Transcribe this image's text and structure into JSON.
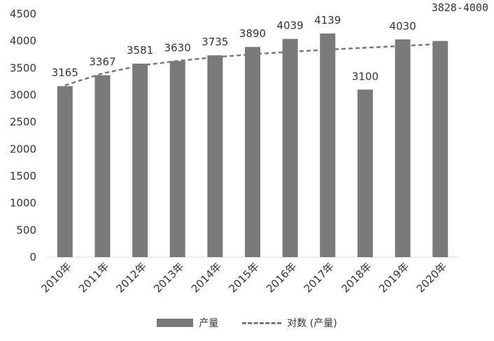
{
  "chart_data": {
    "type": "bar",
    "title": "",
    "xlabel": "",
    "ylabel": "",
    "categories": [
      "2010年",
      "2011年",
      "2012年",
      "2013年",
      "2014年",
      "2015年",
      "2016年",
      "2017年",
      "2018年",
      "2019年",
      "2020年"
    ],
    "series": [
      {
        "name": "产量",
        "type": "bar",
        "color": "#7a7a7a",
        "values": [
          3165,
          3367,
          3581,
          3630,
          3735,
          3890,
          4039,
          4139,
          3100,
          4030,
          4000
        ],
        "data_labels": [
          "3165",
          "3367",
          "3581",
          "3630",
          "3735",
          "3890",
          "4039",
          "4139",
          "3100",
          "4030",
          ""
        ]
      },
      {
        "name": "对数 (产量)",
        "type": "line",
        "style": "dashed",
        "color": "#7a7a7a",
        "values": [
          3180,
          3400,
          3545,
          3630,
          3700,
          3755,
          3800,
          3840,
          3875,
          3910,
          3945
        ]
      }
    ],
    "yticks": [
      "0",
      "500",
      "1000",
      "1500",
      "2000",
      "2500",
      "3000",
      "3500",
      "4000",
      "4500"
    ],
    "ylim": [
      0,
      4500
    ],
    "grid": false,
    "legend_position": "bottom",
    "annotation": "3828-4000"
  }
}
